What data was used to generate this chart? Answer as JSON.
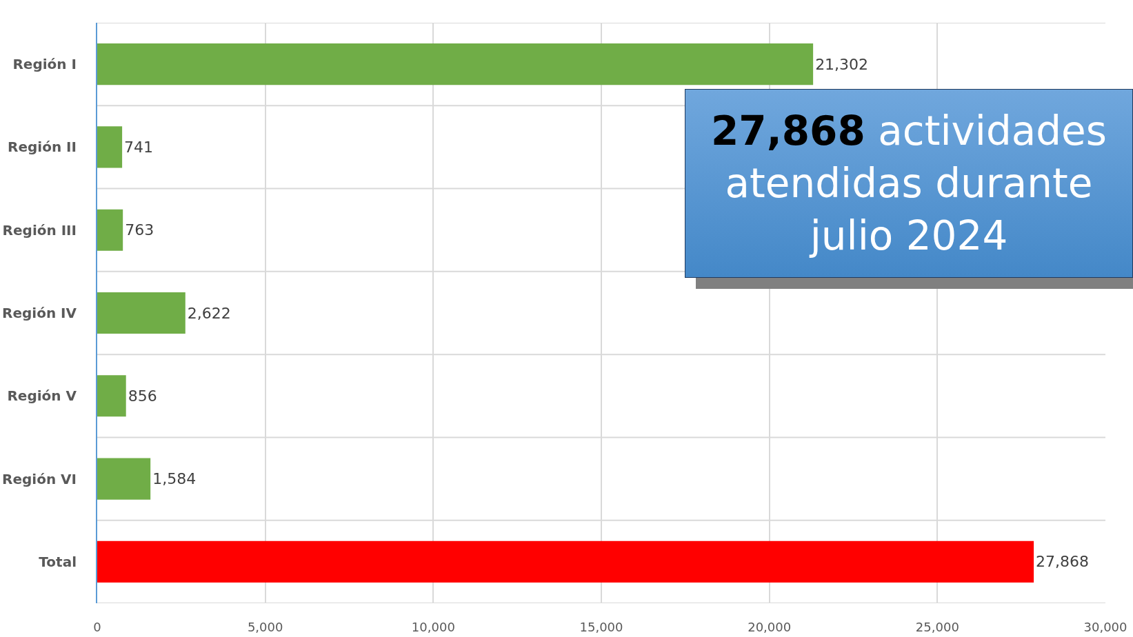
{
  "chart_data": {
    "type": "bar",
    "orientation": "horizontal",
    "categories": [
      "Región I",
      "Región II",
      "Región III",
      "Región IV",
      "Región V",
      "Región VI",
      "Total"
    ],
    "values": [
      21302,
      741,
      763,
      2622,
      856,
      1584,
      27868
    ],
    "colors": [
      "#70ad47",
      "#70ad47",
      "#70ad47",
      "#70ad47",
      "#70ad47",
      "#70ad47",
      "#ff0000"
    ],
    "value_labels": [
      "21,302",
      "741",
      "763",
      "2,622",
      "856",
      "1,584",
      "27,868"
    ],
    "xlim": [
      0,
      30000
    ],
    "xticks": [
      0,
      {
        "value": 5000,
        "label": "5,000"
      },
      {
        "value": 10000,
        "label": "10,000"
      },
      {
        "value": 15000,
        "label": "15,000"
      },
      {
        "value": 20000,
        "label": "20,000"
      },
      {
        "value": 25000,
        "label": "25,000"
      },
      {
        "value": 30000,
        "label": "30,000"
      }
    ],
    "grid": true,
    "annotations": [
      "27,868 actividades atendidas durante julio 2024"
    ]
  }
}
